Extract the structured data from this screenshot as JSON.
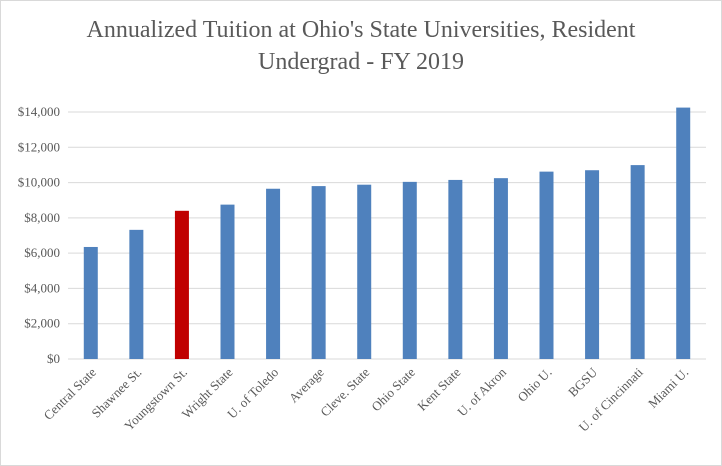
{
  "chart_data": {
    "type": "bar",
    "title_lines": [
      "Annualized  Tuition at Ohio's State Universities,  Resident",
      "Undergrad - FY 2019"
    ],
    "categories": [
      "Central State",
      "Shawnee St.",
      "Youngstown St.",
      "Wright State",
      "U. of Toledo",
      "Average",
      "Cleve. State",
      "Ohio State",
      "Kent State",
      "U. of Akron",
      "Ohio U.",
      "BGSU",
      "U. of Cincinnati",
      "Miami U."
    ],
    "values": [
      6350,
      7320,
      8400,
      8750,
      9650,
      9800,
      9880,
      10040,
      10150,
      10250,
      10620,
      10700,
      10990,
      14250
    ],
    "highlight_index": 2,
    "ylim": [
      0,
      14000
    ],
    "yticks": [
      0,
      2000,
      4000,
      6000,
      8000,
      10000,
      12000,
      14000
    ],
    "ytick_labels": [
      "$0",
      "$2,000",
      "$4,000",
      "$6,000",
      "$8,000",
      "$10,000",
      "$12,000",
      "$14,000"
    ],
    "xlabel": "",
    "ylabel": "",
    "grid": true,
    "colors": {
      "bar": "#4f81bd",
      "highlight": "#c00000",
      "grid": "#d9d9d9",
      "text": "#595959"
    }
  }
}
